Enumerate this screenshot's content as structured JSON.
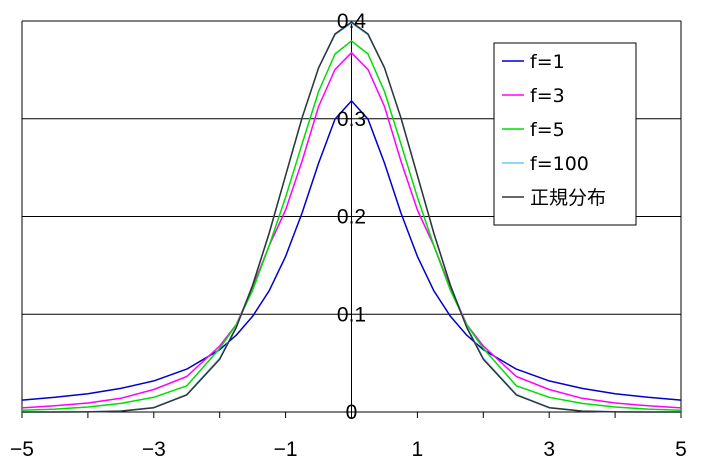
{
  "chart_data": {
    "type": "line",
    "title": "",
    "xlabel": "",
    "ylabel": "",
    "xlim": [
      -5,
      5
    ],
    "ylim": [
      0,
      0.4
    ],
    "x_ticks": [
      -5,
      -3,
      -1,
      1,
      3,
      5
    ],
    "x_tick_labels": [
      "−5",
      "−3",
      "−1",
      "1",
      "3",
      "5"
    ],
    "y_ticks": [
      0,
      0.1,
      0.2,
      0.3,
      0.4
    ],
    "y_tick_labels": [
      "0",
      "0.1",
      "0.2",
      "0.3",
      "0.4"
    ],
    "grid": {
      "horizontal": true,
      "vertical": false
    },
    "legend_position": "top-right",
    "x": [
      -5,
      -4.5,
      -4,
      -3.5,
      -3,
      -2.5,
      -2,
      -1.75,
      -1.5,
      -1.25,
      -1,
      -0.75,
      -0.5,
      -0.25,
      0,
      0.25,
      0.5,
      0.75,
      1,
      1.25,
      1.5,
      1.75,
      2,
      2.5,
      3,
      3.5,
      4,
      4.5,
      5
    ],
    "series": [
      {
        "name": "f=1",
        "color": "#0000cc",
        "values": [
          0.0122,
          0.015,
          0.0187,
          0.0241,
          0.0318,
          0.0439,
          0.0637,
          0.0786,
          0.0979,
          0.1239,
          0.1592,
          0.2037,
          0.2546,
          0.2996,
          0.3183,
          0.2996,
          0.2546,
          0.2037,
          0.1592,
          0.1239,
          0.0979,
          0.0786,
          0.0637,
          0.0439,
          0.0318,
          0.0241,
          0.0187,
          0.015,
          0.0122
        ]
      },
      {
        "name": "f=3",
        "color": "#ff00ff",
        "values": [
          0.0042,
          0.0063,
          0.0092,
          0.014,
          0.023,
          0.0363,
          0.0675,
          0.0893,
          0.1274,
          0.17,
          0.2067,
          0.2568,
          0.3125,
          0.3504,
          0.3676,
          0.3504,
          0.3125,
          0.2568,
          0.2067,
          0.17,
          0.1274,
          0.0893,
          0.0675,
          0.0363,
          0.023,
          0.014,
          0.0092,
          0.0063,
          0.0042
        ]
      },
      {
        "name": "f=5",
        "color": "#00dd00",
        "values": [
          0.0018,
          0.003,
          0.0051,
          0.0088,
          0.015,
          0.0268,
          0.0651,
          0.0892,
          0.1245,
          0.17,
          0.2197,
          0.2744,
          0.3279,
          0.3662,
          0.3796,
          0.3662,
          0.3279,
          0.2744,
          0.2197,
          0.17,
          0.1245,
          0.0892,
          0.0651,
          0.0268,
          0.015,
          0.0088,
          0.0051,
          0.003,
          0.0018
        ]
      },
      {
        "name": "f=100",
        "color": "#66ccff",
        "values": [
          0.0,
          0.0,
          0.0002,
          0.001,
          0.0046,
          0.018,
          0.055,
          0.087,
          0.13,
          0.183,
          0.242,
          0.301,
          0.352,
          0.386,
          0.398,
          0.386,
          0.352,
          0.301,
          0.242,
          0.183,
          0.13,
          0.087,
          0.055,
          0.018,
          0.0046,
          0.001,
          0.0002,
          0.0,
          0.0
        ]
      },
      {
        "name": "正規分布",
        "color": "#333333",
        "values": [
          0.0,
          0.0,
          0.0001,
          0.0009,
          0.0044,
          0.0175,
          0.054,
          0.0863,
          0.1295,
          0.1826,
          0.242,
          0.3011,
          0.3521,
          0.3867,
          0.3989,
          0.3867,
          0.3521,
          0.3011,
          0.242,
          0.1826,
          0.1295,
          0.0863,
          0.054,
          0.0175,
          0.0044,
          0.0009,
          0.0001,
          0.0,
          0.0
        ]
      }
    ]
  }
}
